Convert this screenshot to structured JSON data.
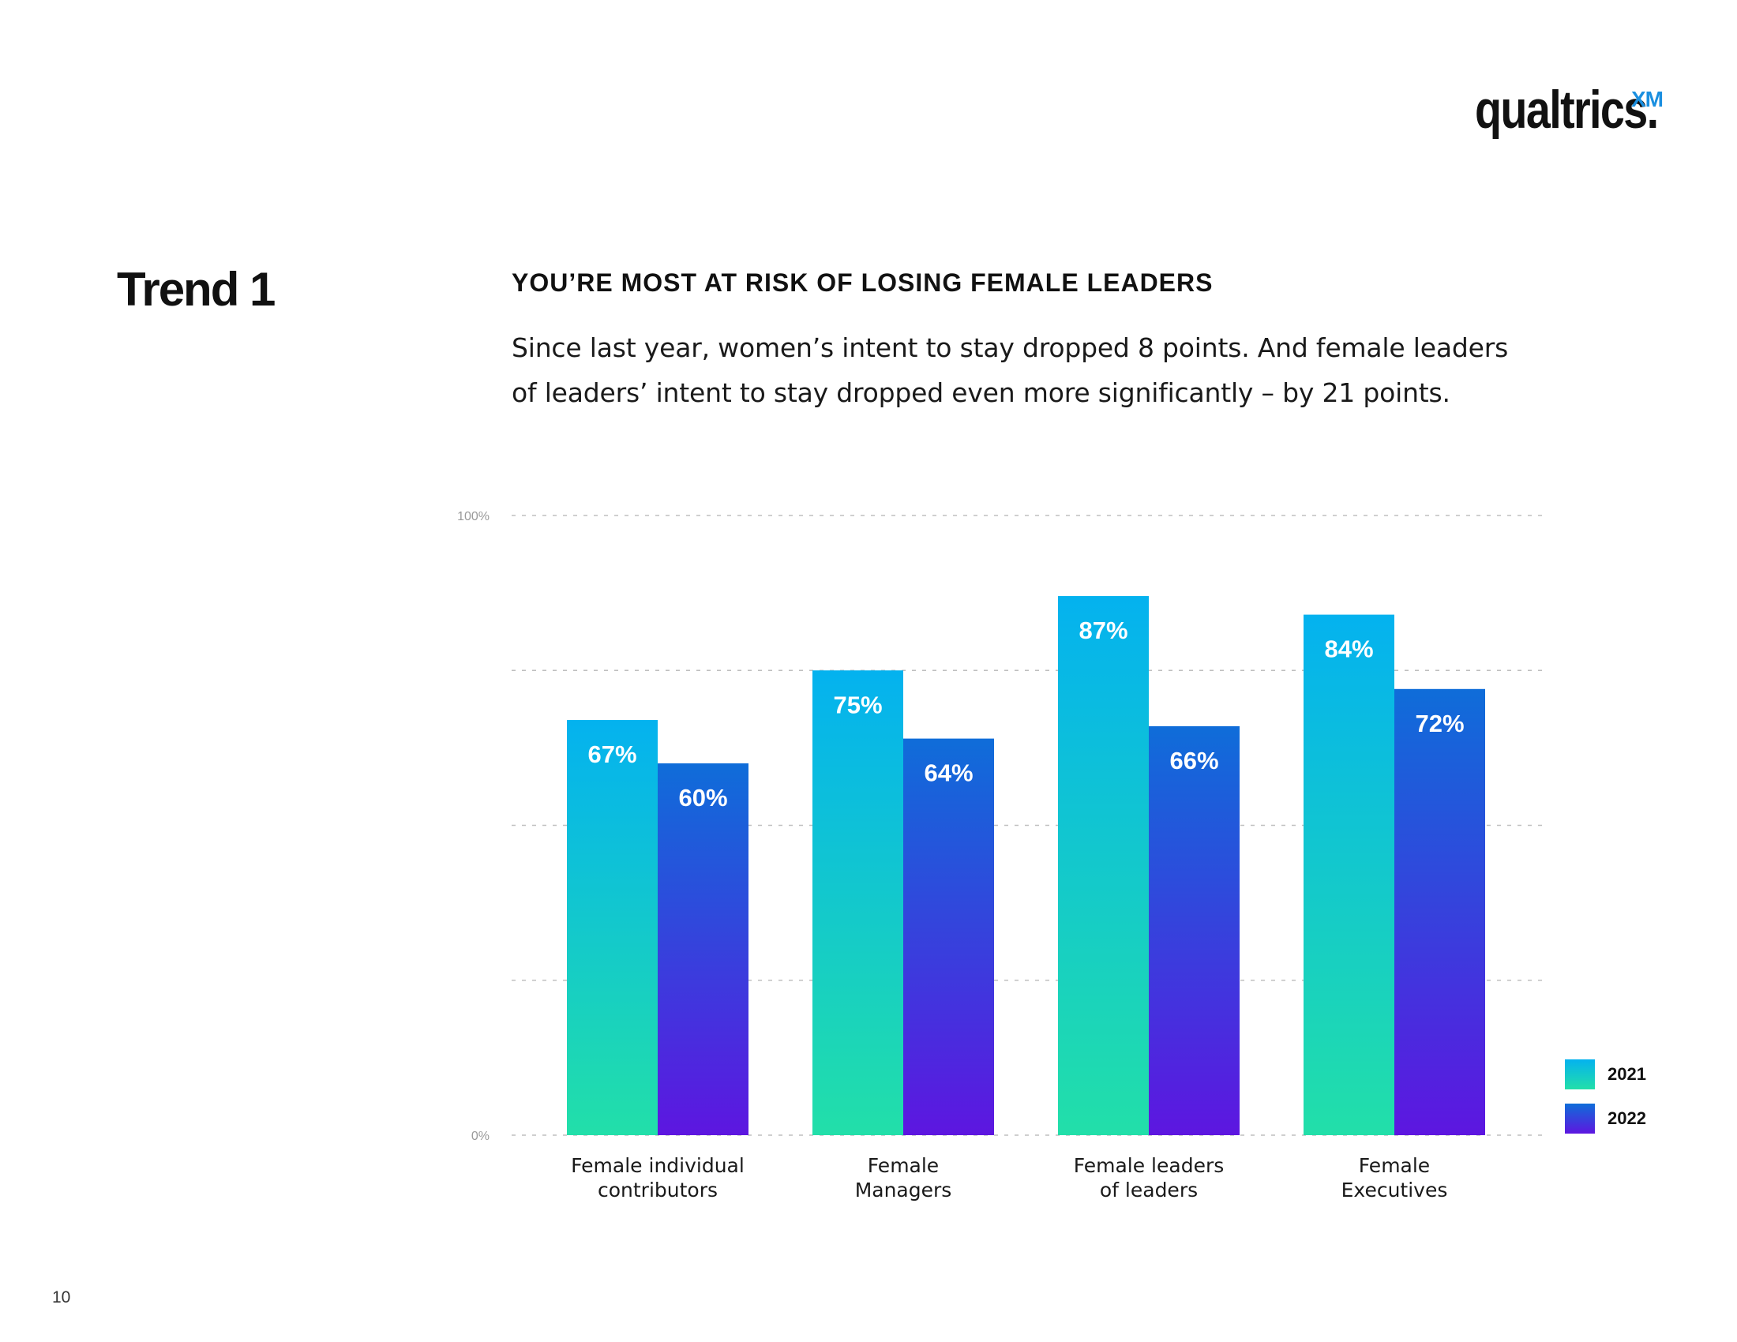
{
  "logo": {
    "wordmark": "qualtrics.",
    "suffix": "XM"
  },
  "trend_label": "Trend 1",
  "headline": "YOU’RE MOST AT RISK OF LOSING FEMALE LEADERS",
  "subtext": "Since last year, women’s intent to stay dropped 8 points. And female leaders of leaders’ intent to stay dropped even more significantly – by 21 points.",
  "page_number": "10",
  "colors": {
    "s2021_top": "#04b2ef",
    "s2021_bottom": "#22dfa9",
    "s2022_top": "#0f6dd9",
    "s2022_bottom": "#5d16e0",
    "gridline": "#bfbfbf",
    "tick_text": "#9a9a9a"
  },
  "chart_data": {
    "type": "bar",
    "title": "",
    "xlabel": "",
    "ylabel": "",
    "ylim": [
      0,
      100
    ],
    "y_ticks": [
      {
        "value": 0,
        "label": "0%"
      },
      {
        "value": 100,
        "label": "100%"
      }
    ],
    "grid_values": [
      0,
      25,
      50,
      75,
      100
    ],
    "categories": [
      [
        "Female individual",
        "contributors"
      ],
      [
        "Female",
        "Managers"
      ],
      [
        "Female leaders",
        "of leaders"
      ],
      [
        "Female",
        "Executives"
      ]
    ],
    "series": [
      {
        "name": "2021",
        "values": [
          67,
          75,
          87,
          84
        ],
        "labels": [
          "67%",
          "75%",
          "87%",
          "84%"
        ]
      },
      {
        "name": "2022",
        "values": [
          60,
          64,
          66,
          72
        ],
        "labels": [
          "60%",
          "64%",
          "66%",
          "72%"
        ]
      }
    ],
    "legend": {
      "position": "bottom-right"
    }
  }
}
